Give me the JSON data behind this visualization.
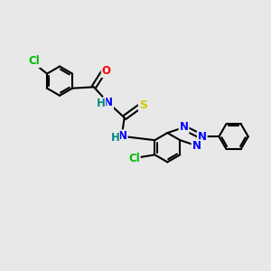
{
  "bg_color": "#e8e8e8",
  "bond_color": "#000000",
  "bond_width": 1.5,
  "atom_colors": {
    "Cl": "#00bb00",
    "O": "#ff0000",
    "N": "#0000ff",
    "S": "#cccc00",
    "H": "#008888",
    "C": "#000000"
  },
  "font_size": 8.5,
  "fig_bg": "#e8e8e8"
}
